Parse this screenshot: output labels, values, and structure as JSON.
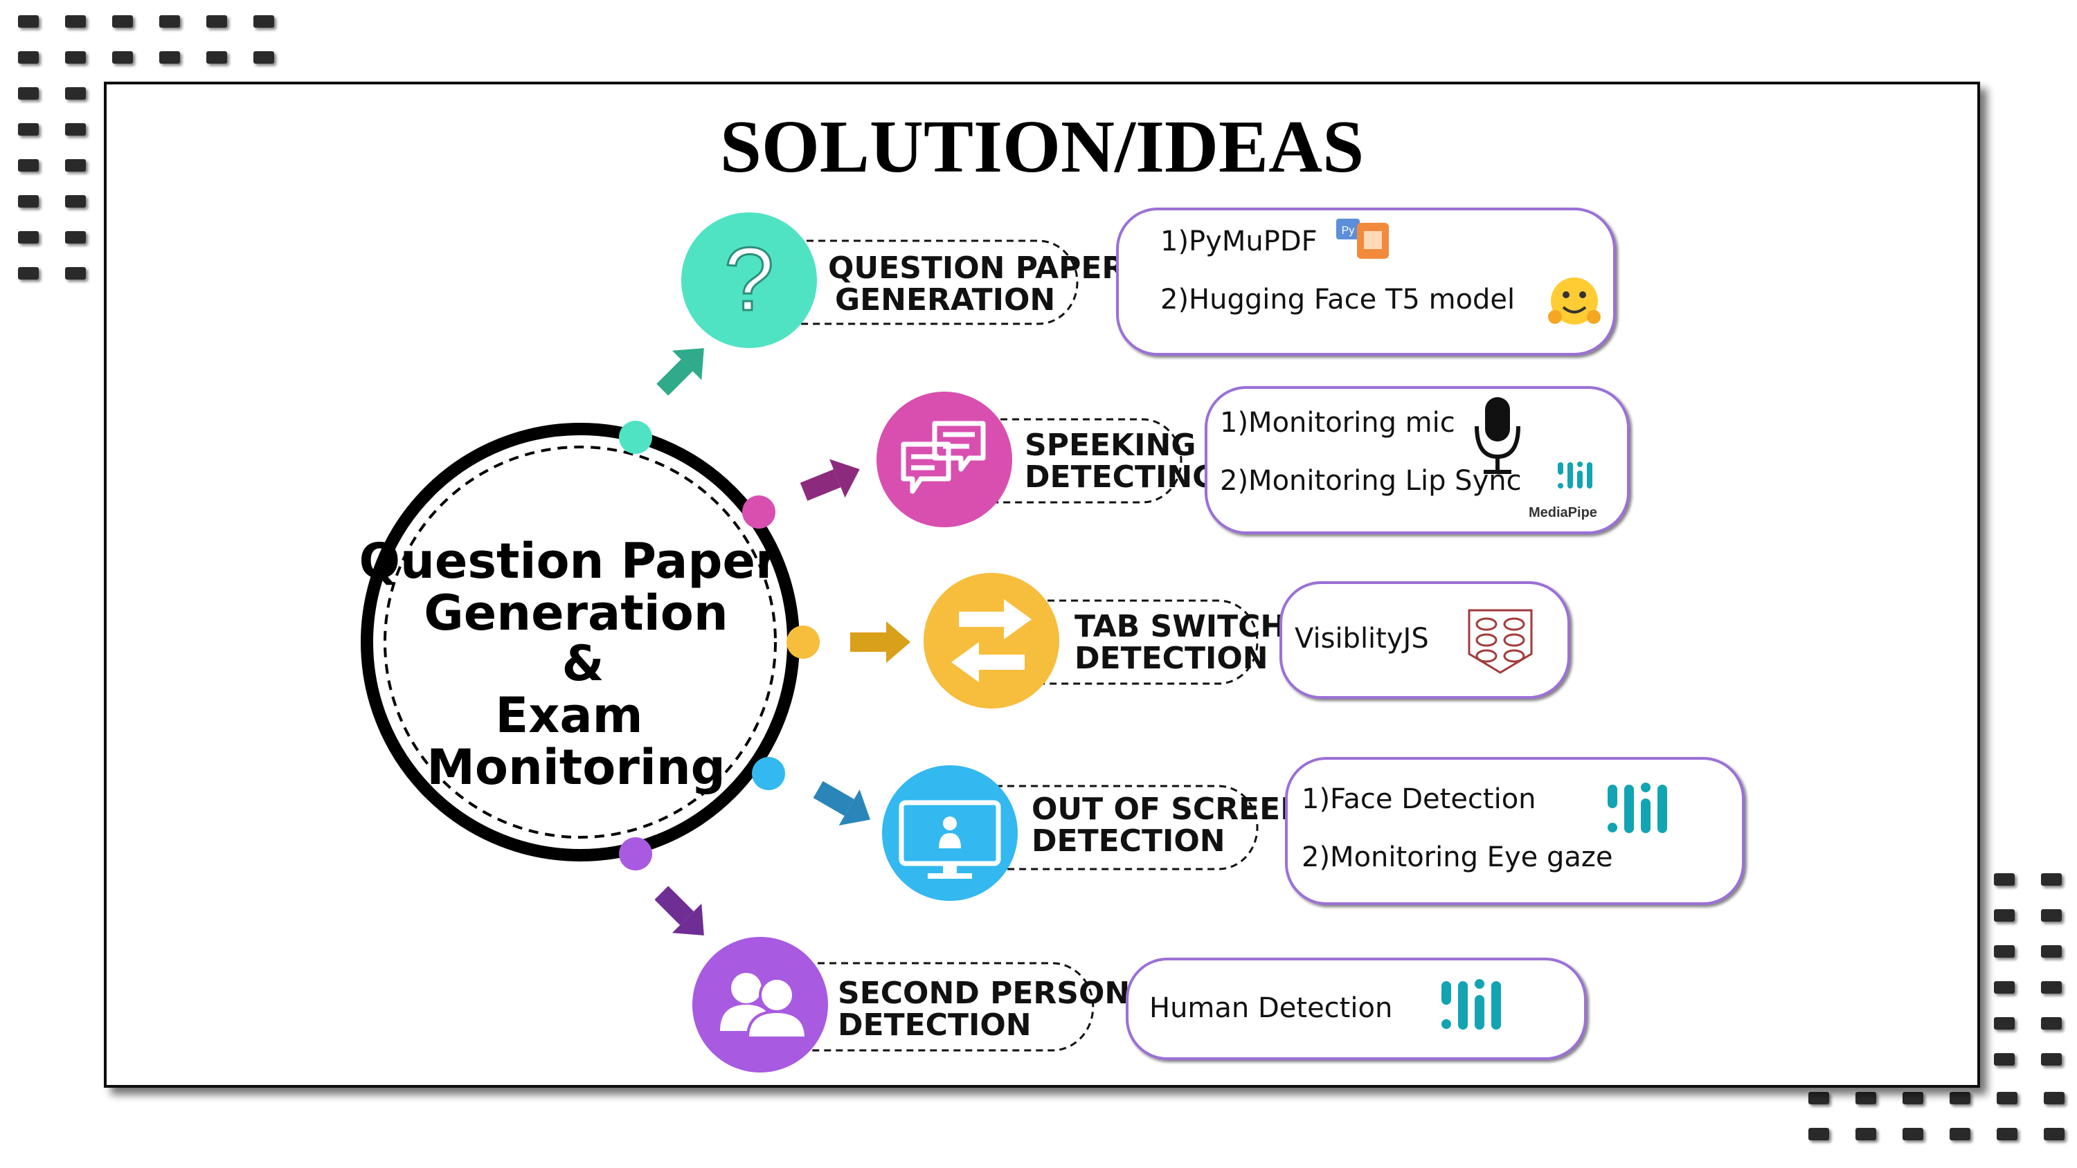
{
  "title": "SOLUTION/IDEAS",
  "hub": {
    "lines": [
      "Question Paper",
      "Generation",
      "&",
      "Exam",
      "Monitoring"
    ]
  },
  "branches": [
    {
      "id": "question-paper",
      "color": "#4fe3c4",
      "arrow_color": "#2faa8a",
      "icon": "question-mark-icon",
      "label_lines": [
        "QUESTION PAPER",
        "GENERATION"
      ],
      "ideas": [
        "1)PyMuPDF",
        "2)Hugging Face T5 model"
      ],
      "idea_icons": [
        "pymupdf-logo-icon",
        "hugging-face-emoji-icon"
      ]
    },
    {
      "id": "speaking",
      "color": "#d94fb0",
      "arrow_color": "#8c2a7e",
      "icon": "chat-bubbles-icon",
      "label_lines": [
        "SPEEKING",
        "DETECTING"
      ],
      "ideas": [
        "1)Monitoring mic",
        "2)Monitoring Lip Sync"
      ],
      "idea_icons": [
        "microphone-icon",
        "mediapipe-logo-icon"
      ],
      "logo_caption": "MediaPipe"
    },
    {
      "id": "tab-switch",
      "color": "#f7bd3c",
      "arrow_color": "#d9a01a",
      "icon": "swap-arrows-icon",
      "label_lines": [
        "TAB SWITCH",
        "DETECTION"
      ],
      "ideas": [
        "VisiblityJS"
      ],
      "idea_icons": [
        "visibilityjs-logo-icon"
      ]
    },
    {
      "id": "out-of-screen",
      "color": "#33b8f0",
      "arrow_color": "#2a86b8",
      "icon": "monitor-person-icon",
      "label_lines": [
        "OUT OF SCREEN",
        "DETECTION"
      ],
      "ideas": [
        "1)Face Detection",
        "2)Monitoring Eye gaze"
      ],
      "idea_icons": [
        "mediapipe-logo-icon"
      ]
    },
    {
      "id": "second-person",
      "color": "#a85ae0",
      "arrow_color": "#6e2e94",
      "icon": "two-people-icon",
      "label_lines": [
        "SECOND PERSON",
        "DETECTION"
      ],
      "ideas": [
        "Human Detection"
      ],
      "idea_icons": [
        "mediapipe-logo-icon"
      ]
    }
  ]
}
